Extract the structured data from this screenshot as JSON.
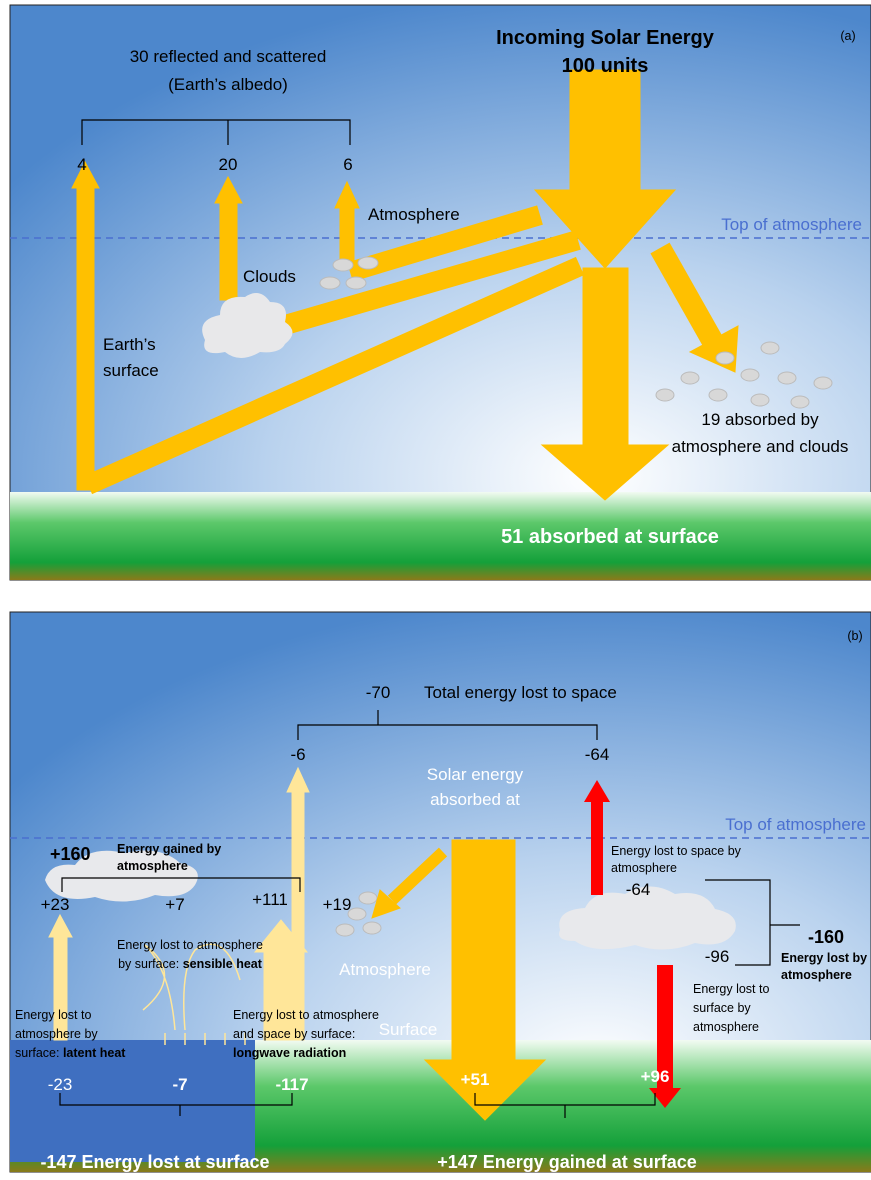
{
  "panel_a": {
    "label": "(a)",
    "title": [
      "Incoming Solar Energy",
      "100 units"
    ],
    "reflected": [
      "30 reflected and scattered",
      "(Earth’s albedo)"
    ],
    "reflected_parts": [
      "4",
      "20",
      "6"
    ],
    "atmosphere": "Atmosphere",
    "clouds": "Clouds",
    "surface": [
      "Earth’s",
      "surface"
    ],
    "top_of_atmosphere": "Top of atmosphere",
    "absorbed_atmosphere": [
      "19 absorbed by",
      "atmosphere and clouds"
    ],
    "absorbed_surface": "51 absorbed at surface"
  },
  "panel_b": {
    "label": "(b)",
    "space_total": "-70",
    "space_total_text": "Total energy lost to space",
    "space_parts": [
      "-6",
      "-64"
    ],
    "solar": [
      "Solar energy",
      "absorbed at"
    ],
    "top_of_atmosphere": "Top of atmosphere",
    "gained_total": "+160",
    "gained_text": [
      "Energy gained by",
      "atmosphere"
    ],
    "gained_parts": [
      "+23",
      "+7",
      "+111",
      "+19"
    ],
    "atmosphere": "Atmosphere",
    "surface": "Surface",
    "lost_space": [
      "Energy lost to space by",
      "atmosphere"
    ],
    "lost_space_value": "-64",
    "lost_total": "-160",
    "lost_text": [
      "Energy lost by",
      "atmosphere"
    ],
    "lost_surface_value": "-96",
    "lost_surface": [
      "Energy lost to",
      "surface by",
      "atmosphere"
    ],
    "sensible": [
      "Energy lost to atmosphere",
      "by surface: ",
      "sensible heat"
    ],
    "latent": [
      "Energy lost to",
      "atmosphere by",
      "surface: ",
      "latent heat"
    ],
    "longwave": [
      "Energy lost to atmosphere",
      "and space by surface:",
      "longwave radiation"
    ],
    "surface_losses": [
      "-23",
      "-7",
      "-117"
    ],
    "surface_gains": [
      "+51",
      "+96"
    ],
    "lost_at_surface": "-147 Energy lost at surface",
    "gained_at_surface": "+147 Energy gained at surface"
  }
}
